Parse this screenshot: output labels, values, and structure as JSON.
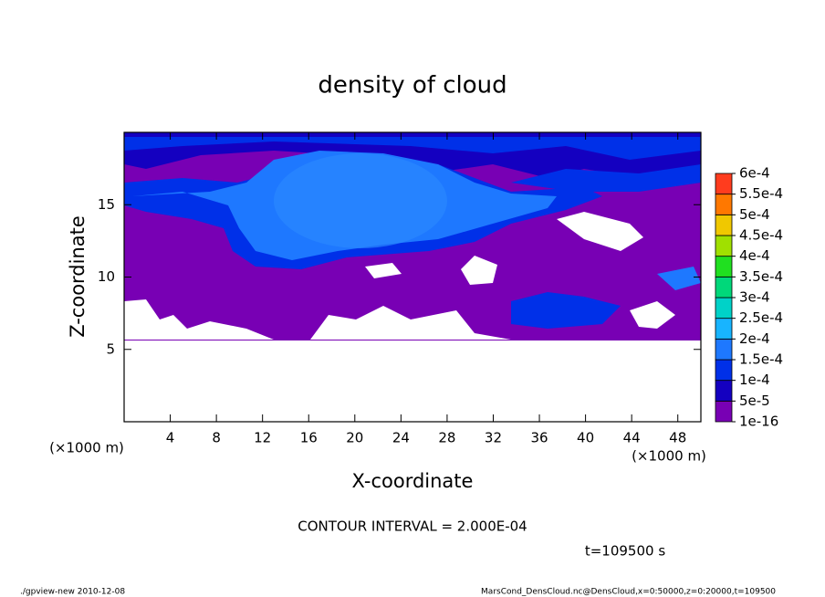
{
  "chart_data": {
    "type": "contour",
    "title": "density of cloud",
    "x_label": "X-coordinate",
    "y_label": "Z-coordinate",
    "x_unit": "(×1000 m)",
    "y_unit": "(×1000 m)",
    "xlim": [
      0,
      50
    ],
    "ylim": [
      0,
      20
    ],
    "xticks": [
      4,
      8,
      12,
      16,
      20,
      24,
      28,
      32,
      36,
      40,
      44,
      48
    ],
    "yticks": [
      5,
      10,
      15
    ],
    "colorbar": {
      "levels": [
        {
          "value": 1e-16,
          "label": "1e-16"
        },
        {
          "value": 5e-05,
          "label": "5e-5"
        },
        {
          "value": 0.0001,
          "label": "1e-4"
        },
        {
          "value": 0.00015,
          "label": "1.5e-4"
        },
        {
          "value": 0.0002,
          "label": "2e-4"
        },
        {
          "value": 0.00025,
          "label": "2.5e-4"
        },
        {
          "value": 0.0003,
          "label": "3e-4"
        },
        {
          "value": 0.00035,
          "label": "3.5e-4"
        },
        {
          "value": 0.0004,
          "label": "4e-4"
        },
        {
          "value": 0.00045,
          "label": "4.5e-4"
        },
        {
          "value": 0.0005,
          "label": "5e-4"
        },
        {
          "value": 0.00055,
          "label": "5.5e-4"
        },
        {
          "value": 0.0006,
          "label": "6e-4"
        }
      ],
      "colors": [
        "#7800b4",
        "#1400c0",
        "#0030e8",
        "#1e78ff",
        "#18b4ff",
        "#00d2c8",
        "#00d87a",
        "#20e020",
        "#a0e000",
        "#f0c800",
        "#ff7800",
        "#ff3c1e"
      ]
    },
    "contour_interval": "CONTOUR INTERVAL = 2.000E-04",
    "time_label": "t=109500 s",
    "footer_left": "./gpview-new  2010-12-08",
    "footer_right": "MarsCond_DensCloud.nc@DensCloud,x=0:50000,z=0:20000,t=109500"
  }
}
